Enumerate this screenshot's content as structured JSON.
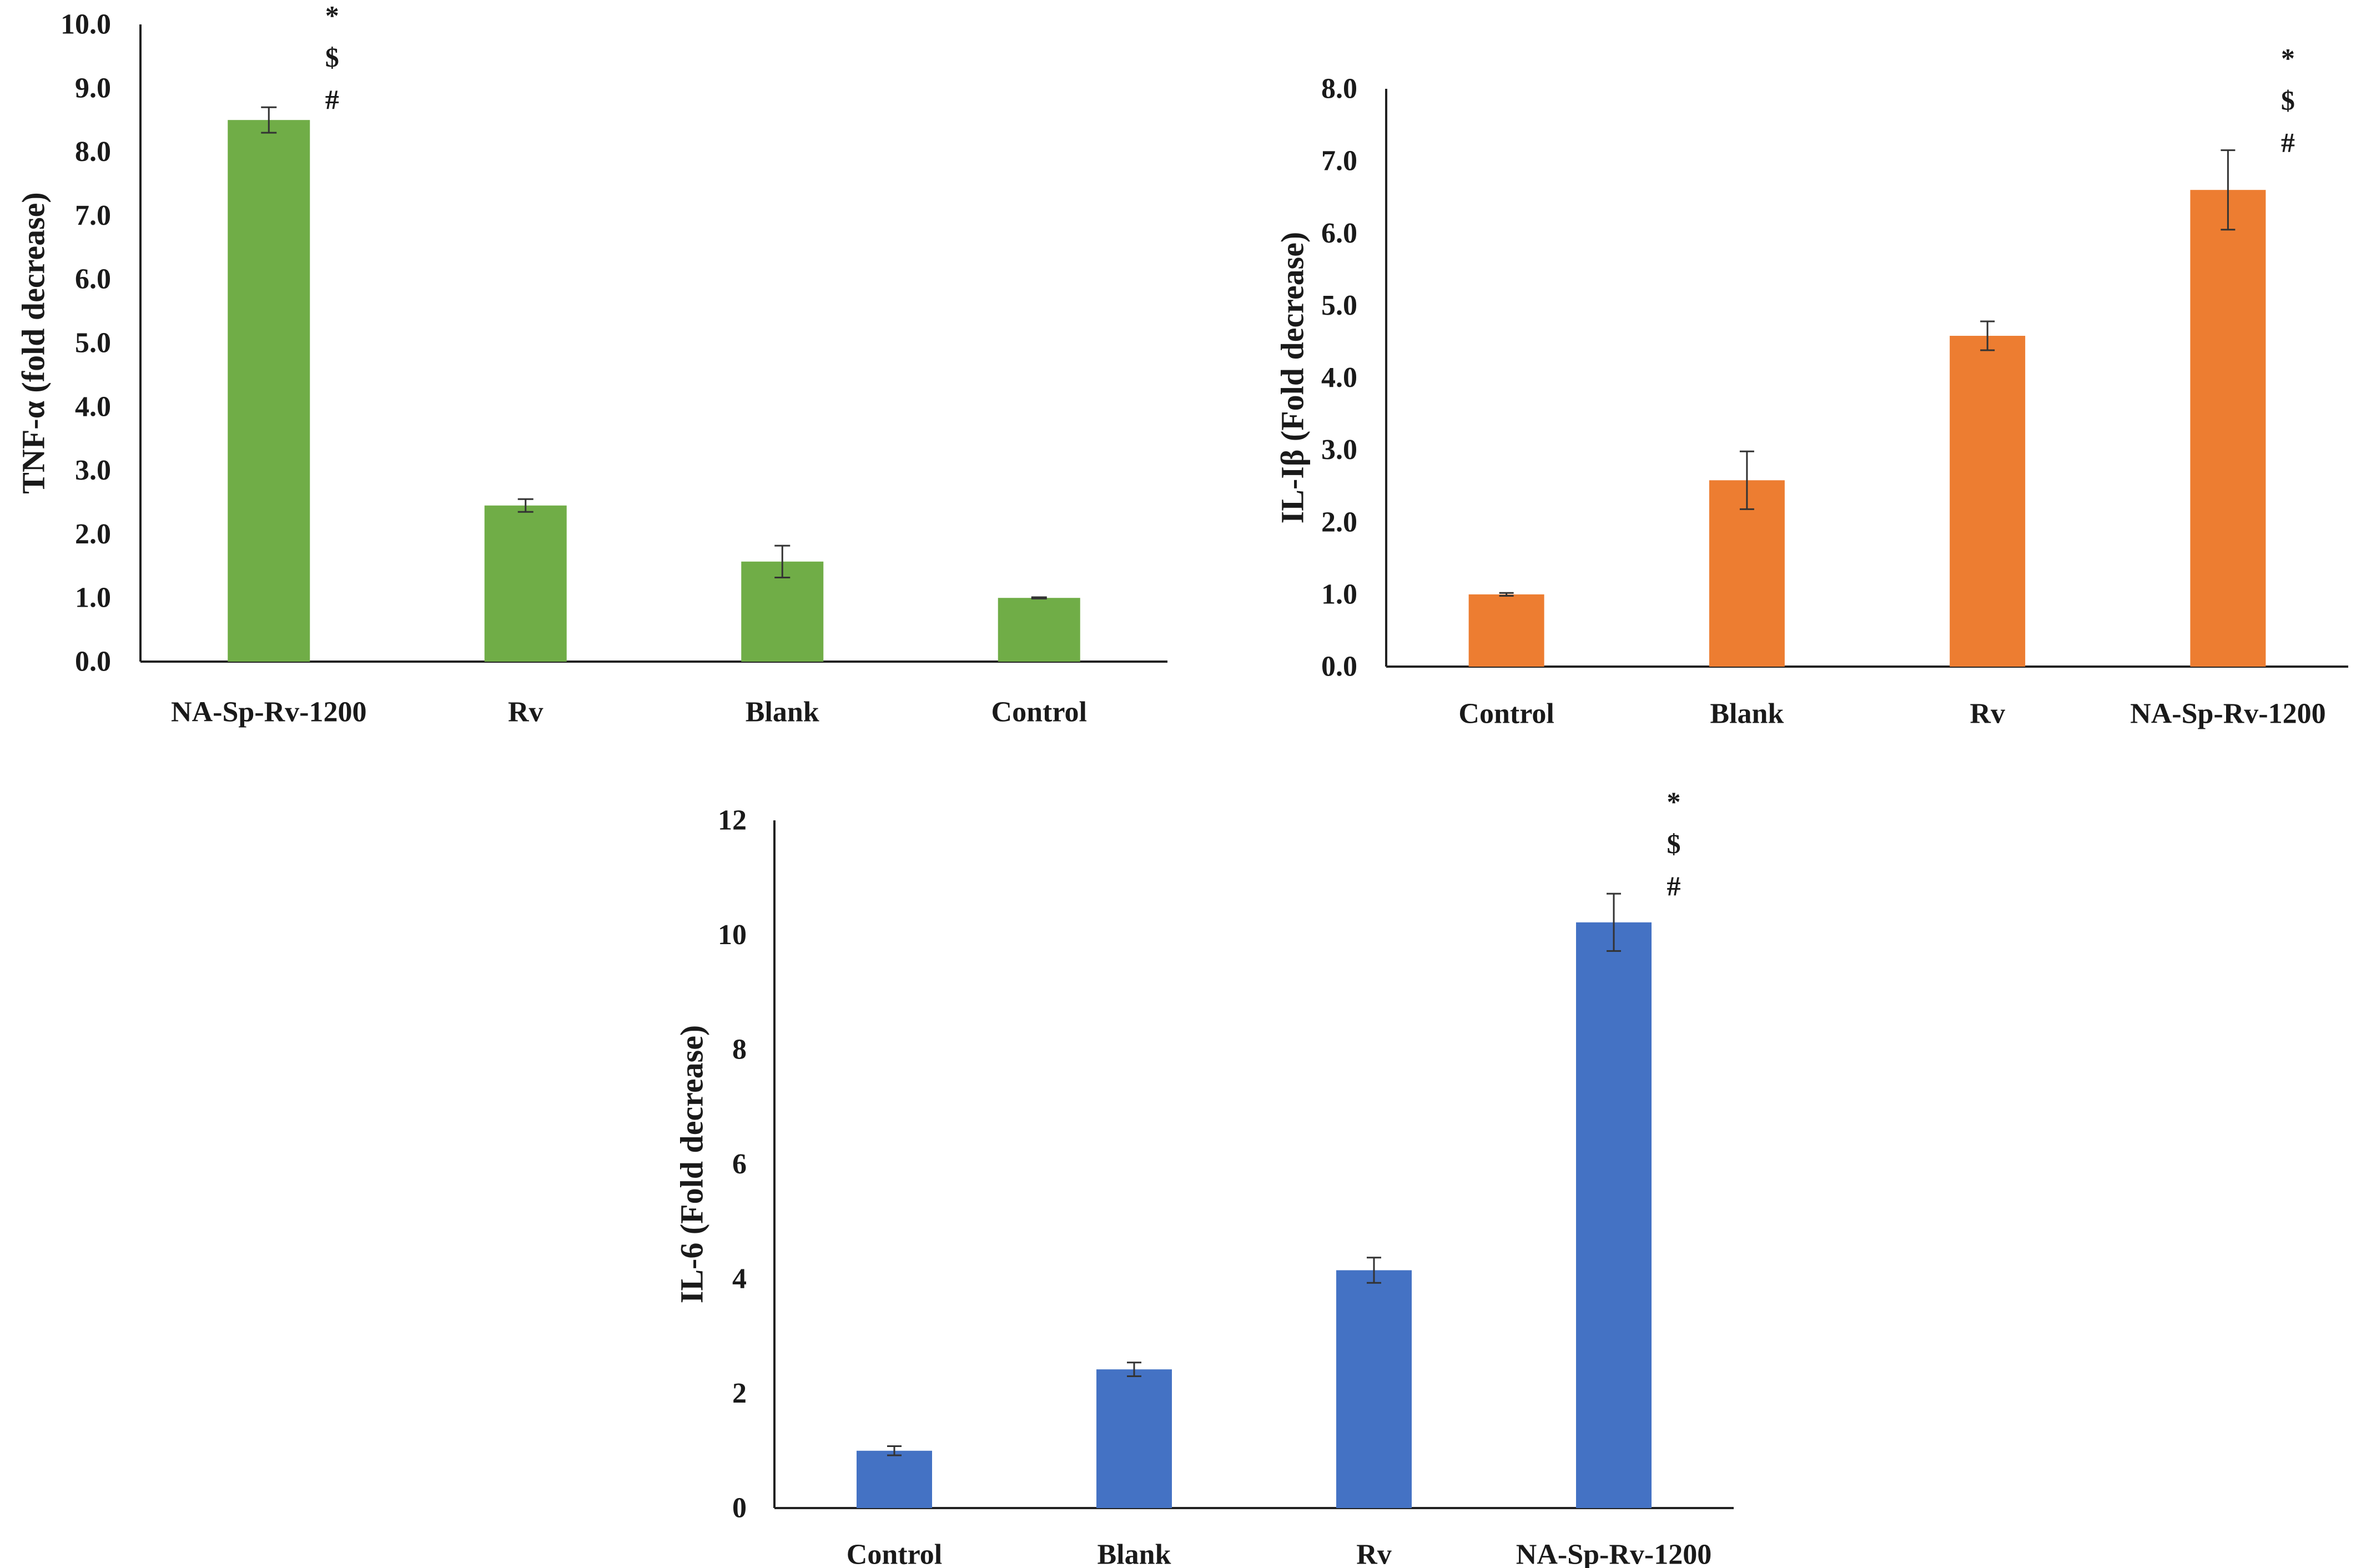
{
  "chart_data": [
    {
      "type": "bar",
      "id": "tnf",
      "title": "",
      "xlabel": "",
      "ylabel": "TNF-α (fold decrease)",
      "categories": [
        "NA-Sp-Rv-1200",
        "Rv",
        "Blank",
        "Control"
      ],
      "values": [
        8.5,
        2.45,
        1.57,
        1.0
      ],
      "errors": [
        0.2,
        0.1,
        0.25,
        0.01
      ],
      "ylim": [
        0,
        10
      ],
      "yticks": [
        "0.0",
        "1.0",
        "2.0",
        "3.0",
        "4.0",
        "5.0",
        "6.0",
        "7.0",
        "8.0",
        "9.0",
        "10.0"
      ],
      "ytick_values": [
        0,
        1,
        2,
        3,
        4,
        5,
        6,
        7,
        8,
        9,
        10
      ],
      "color": "#70ad47",
      "annotations": [
        {
          "category": "NA-Sp-Rv-1200",
          "labels": [
            "*",
            "$",
            "#"
          ]
        }
      ]
    },
    {
      "type": "bar",
      "id": "il1b",
      "title": "",
      "xlabel": "",
      "ylabel": "IL-Iβ (Fold decrease)",
      "categories": [
        "Control",
        "Blank",
        "Rv",
        "NA-Sp-Rv-1200"
      ],
      "values": [
        1.0,
        2.58,
        4.58,
        6.6
      ],
      "errors": [
        0.02,
        0.4,
        0.2,
        0.55
      ],
      "ylim": [
        0,
        8
      ],
      "yticks": [
        "0.0",
        "1.0",
        "2.0",
        "3.0",
        "4.0",
        "5.0",
        "6.0",
        "7.0",
        "8.0"
      ],
      "ytick_values": [
        0,
        1,
        2,
        3,
        4,
        5,
        6,
        7,
        8
      ],
      "color": "#ed7d31",
      "annotations": [
        {
          "category": "NA-Sp-Rv-1200",
          "labels": [
            "*",
            "$",
            "#"
          ]
        }
      ]
    },
    {
      "type": "bar",
      "id": "il6",
      "title": "",
      "xlabel": "",
      "ylabel": "IL-6 (Fold decrease)",
      "categories": [
        "Control",
        "Blank",
        "Rv",
        "NA-Sp-Rv-1200"
      ],
      "values": [
        1.0,
        2.42,
        4.15,
        10.22
      ],
      "errors": [
        0.08,
        0.12,
        0.22,
        0.5
      ],
      "ylim": [
        0,
        12
      ],
      "yticks": [
        "0",
        "2",
        "4",
        "6",
        "8",
        "10",
        "12"
      ],
      "ytick_values": [
        0,
        2,
        4,
        6,
        8,
        10,
        12
      ],
      "color": "#4472c4",
      "annotations": [
        {
          "category": "NA-Sp-Rv-1200",
          "labels": [
            "*",
            "$",
            "#"
          ]
        }
      ]
    }
  ]
}
